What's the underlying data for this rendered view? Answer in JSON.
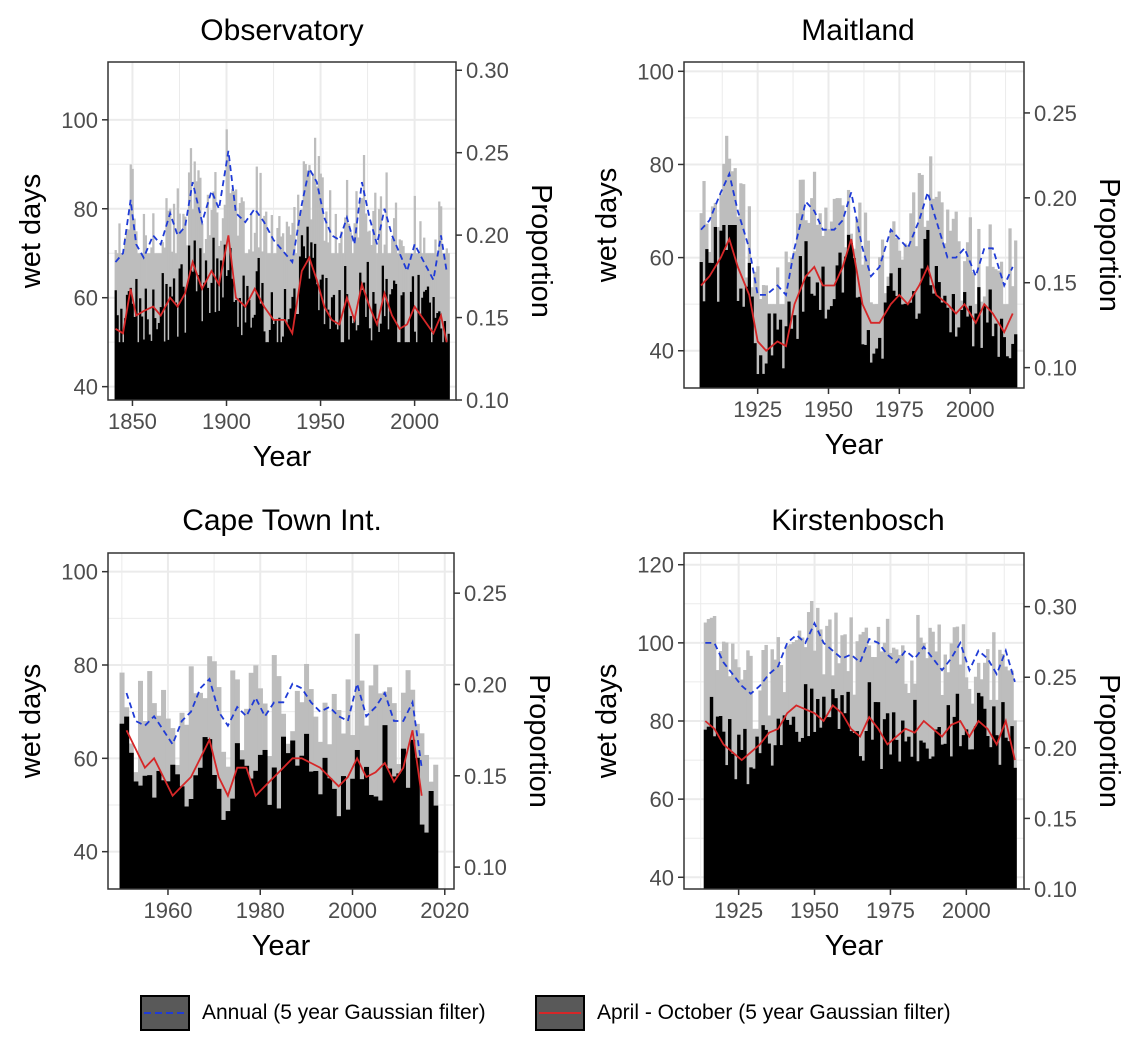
{
  "chart_data": [
    {
      "type": "bar",
      "title": "Observatory",
      "xlabel": "Year",
      "ylabel": "wet days",
      "y2label": "Proportion",
      "xlim": [
        1837,
        2022
      ],
      "ylim": [
        37,
        113
      ],
      "y2lim": [
        0.1,
        0.305
      ],
      "xticks": [
        1850,
        1900,
        1950,
        2000
      ],
      "yticks": [
        40,
        60,
        80,
        100
      ],
      "y2ticks": [
        "0.10",
        "0.15",
        "0.20",
        "0.25",
        "0.30"
      ],
      "x_start": 1841,
      "x_end": 2018,
      "annual_wet_days_range": [
        70,
        106
      ],
      "aprilOct_wet_days_range": [
        50,
        84
      ],
      "annual_filter": [
        [
          1841,
          68
        ],
        [
          1845,
          70
        ],
        [
          1849,
          82
        ],
        [
          1852,
          72
        ],
        [
          1856,
          69
        ],
        [
          1861,
          74
        ],
        [
          1865,
          72
        ],
        [
          1870,
          79
        ],
        [
          1874,
          74
        ],
        [
          1878,
          76
        ],
        [
          1882,
          86
        ],
        [
          1887,
          77
        ],
        [
          1892,
          84
        ],
        [
          1896,
          80
        ],
        [
          1901,
          93
        ],
        [
          1905,
          79
        ],
        [
          1910,
          77
        ],
        [
          1915,
          80
        ],
        [
          1920,
          77
        ],
        [
          1925,
          73
        ],
        [
          1931,
          70
        ],
        [
          1935,
          68
        ],
        [
          1940,
          81
        ],
        [
          1944,
          89
        ],
        [
          1948,
          86
        ],
        [
          1952,
          78
        ],
        [
          1956,
          74
        ],
        [
          1960,
          73
        ],
        [
          1964,
          78
        ],
        [
          1968,
          72
        ],
        [
          1972,
          86
        ],
        [
          1976,
          78
        ],
        [
          1980,
          72
        ],
        [
          1984,
          80
        ],
        [
          1988,
          74
        ],
        [
          1992,
          70
        ],
        [
          1996,
          66
        ],
        [
          2000,
          72
        ],
        [
          2005,
          68
        ],
        [
          2010,
          64
        ],
        [
          2014,
          74
        ],
        [
          2017,
          66
        ]
      ],
      "aprilOct_filter": [
        [
          1841,
          53
        ],
        [
          1845,
          52
        ],
        [
          1849,
          62
        ],
        [
          1852,
          56
        ],
        [
          1856,
          57
        ],
        [
          1861,
          58
        ],
        [
          1865,
          56
        ],
        [
          1870,
          60
        ],
        [
          1874,
          58
        ],
        [
          1878,
          61
        ],
        [
          1882,
          68
        ],
        [
          1887,
          62
        ],
        [
          1892,
          66
        ],
        [
          1896,
          63
        ],
        [
          1901,
          74
        ],
        [
          1905,
          60
        ],
        [
          1910,
          58
        ],
        [
          1915,
          62
        ],
        [
          1920,
          58
        ],
        [
          1925,
          55
        ],
        [
          1931,
          55
        ],
        [
          1935,
          52
        ],
        [
          1940,
          66
        ],
        [
          1944,
          69
        ],
        [
          1948,
          64
        ],
        [
          1952,
          58
        ],
        [
          1956,
          55
        ],
        [
          1960,
          54
        ],
        [
          1964,
          60
        ],
        [
          1968,
          55
        ],
        [
          1972,
          63
        ],
        [
          1976,
          58
        ],
        [
          1980,
          54
        ],
        [
          1984,
          61
        ],
        [
          1988,
          56
        ],
        [
          1992,
          53
        ],
        [
          1996,
          54
        ],
        [
          2000,
          58
        ],
        [
          2005,
          55
        ],
        [
          2010,
          52
        ],
        [
          2014,
          56
        ],
        [
          2017,
          50
        ]
      ]
    },
    {
      "type": "bar",
      "title": "Maitland",
      "xlabel": "Year",
      "ylabel": "wet days",
      "y2label": "Proportion",
      "xlim": [
        1899,
        2019
      ],
      "ylim": [
        32,
        102
      ],
      "y2lim": [
        0.088,
        0.28
      ],
      "xticks": [
        1925,
        1950,
        1975,
        2000
      ],
      "yticks": [
        40,
        60,
        80,
        100
      ],
      "y2ticks": [
        "0.10",
        "0.15",
        "0.20",
        "0.25"
      ],
      "x_start": 1905,
      "x_end": 2016,
      "annual_wet_days_range": [
        50,
        87
      ],
      "aprilOct_wet_days_range": [
        35,
        67
      ],
      "annual_filter": [
        [
          1905,
          66
        ],
        [
          1908,
          68
        ],
        [
          1912,
          74
        ],
        [
          1915,
          78
        ],
        [
          1918,
          70
        ],
        [
          1922,
          62
        ],
        [
          1925,
          52
        ],
        [
          1928,
          52
        ],
        [
          1932,
          54
        ],
        [
          1935,
          52
        ],
        [
          1938,
          62
        ],
        [
          1942,
          72
        ],
        [
          1945,
          70
        ],
        [
          1948,
          66
        ],
        [
          1952,
          66
        ],
        [
          1955,
          68
        ],
        [
          1958,
          74
        ],
        [
          1962,
          62
        ],
        [
          1965,
          56
        ],
        [
          1968,
          58
        ],
        [
          1972,
          66
        ],
        [
          1975,
          64
        ],
        [
          1978,
          62
        ],
        [
          1982,
          68
        ],
        [
          1985,
          74
        ],
        [
          1988,
          68
        ],
        [
          1992,
          60
        ],
        [
          1995,
          60
        ],
        [
          1998,
          62
        ],
        [
          2002,
          56
        ],
        [
          2005,
          62
        ],
        [
          2008,
          62
        ],
        [
          2012,
          54
        ],
        [
          2015,
          58
        ]
      ],
      "aprilOct_filter": [
        [
          1905,
          54
        ],
        [
          1908,
          56
        ],
        [
          1912,
          60
        ],
        [
          1915,
          64
        ],
        [
          1918,
          58
        ],
        [
          1922,
          52
        ],
        [
          1925,
          42
        ],
        [
          1928,
          40
        ],
        [
          1932,
          42
        ],
        [
          1935,
          41
        ],
        [
          1938,
          50
        ],
        [
          1942,
          56
        ],
        [
          1945,
          58
        ],
        [
          1948,
          54
        ],
        [
          1952,
          54
        ],
        [
          1955,
          58
        ],
        [
          1958,
          64
        ],
        [
          1962,
          50
        ],
        [
          1965,
          46
        ],
        [
          1968,
          46
        ],
        [
          1972,
          50
        ],
        [
          1975,
          52
        ],
        [
          1978,
          50
        ],
        [
          1982,
          54
        ],
        [
          1985,
          58
        ],
        [
          1988,
          52
        ],
        [
          1992,
          50
        ],
        [
          1995,
          48
        ],
        [
          1998,
          50
        ],
        [
          2002,
          46
        ],
        [
          2005,
          50
        ],
        [
          2008,
          48
        ],
        [
          2012,
          44
        ],
        [
          2015,
          48
        ]
      ]
    },
    {
      "type": "bar",
      "title": "Cape Town Int.",
      "xlabel": "Year",
      "ylabel": "wet days",
      "y2label": "Proportion",
      "xlim": [
        1947,
        2022
      ],
      "ylim": [
        32,
        104
      ],
      "y2lim": [
        0.088,
        0.272
      ],
      "xticks": [
        1960,
        1980,
        2000,
        2020
      ],
      "yticks": [
        40,
        60,
        80,
        100
      ],
      "y2ticks": [
        "0.10",
        "0.15",
        "0.20",
        "0.25"
      ],
      "x_start": 1950,
      "x_end": 2018,
      "annual_wet_days_range": [
        55,
        88
      ],
      "aprilOct_wet_days_range": [
        42,
        76
      ],
      "annual_filter": [
        [
          1951,
          74
        ],
        [
          1953,
          68
        ],
        [
          1955,
          67
        ],
        [
          1957,
          69
        ],
        [
          1959,
          66
        ],
        [
          1961,
          63
        ],
        [
          1963,
          68
        ],
        [
          1965,
          70
        ],
        [
          1967,
          75
        ],
        [
          1969,
          77
        ],
        [
          1971,
          70
        ],
        [
          1973,
          67
        ],
        [
          1975,
          71
        ],
        [
          1977,
          69
        ],
        [
          1979,
          73
        ],
        [
          1981,
          69
        ],
        [
          1983,
          72
        ],
        [
          1985,
          72
        ],
        [
          1987,
          76
        ],
        [
          1989,
          75
        ],
        [
          1991,
          72
        ],
        [
          1993,
          70
        ],
        [
          1995,
          71
        ],
        [
          1997,
          69
        ],
        [
          1999,
          68
        ],
        [
          2001,
          76
        ],
        [
          2003,
          69
        ],
        [
          2005,
          71
        ],
        [
          2007,
          74
        ],
        [
          2009,
          68
        ],
        [
          2011,
          68
        ],
        [
          2013,
          72
        ],
        [
          2015,
          58
        ]
      ],
      "aprilOct_filter": [
        [
          1951,
          66
        ],
        [
          1953,
          62
        ],
        [
          1955,
          58
        ],
        [
          1957,
          60
        ],
        [
          1959,
          56
        ],
        [
          1961,
          52
        ],
        [
          1963,
          54
        ],
        [
          1965,
          56
        ],
        [
          1967,
          60
        ],
        [
          1969,
          64
        ],
        [
          1971,
          56
        ],
        [
          1973,
          52
        ],
        [
          1975,
          58
        ],
        [
          1977,
          58
        ],
        [
          1979,
          52
        ],
        [
          1981,
          54
        ],
        [
          1983,
          56
        ],
        [
          1985,
          58
        ],
        [
          1987,
          60
        ],
        [
          1989,
          60
        ],
        [
          1991,
          59
        ],
        [
          1993,
          58
        ],
        [
          1995,
          56
        ],
        [
          1997,
          54
        ],
        [
          1999,
          56
        ],
        [
          2001,
          60
        ],
        [
          2003,
          56
        ],
        [
          2005,
          57
        ],
        [
          2007,
          59
        ],
        [
          2009,
          55
        ],
        [
          2011,
          58
        ],
        [
          2013,
          66
        ],
        [
          2015,
          52
        ]
      ]
    },
    {
      "type": "bar",
      "title": "Kirstenbosch",
      "xlabel": "Year",
      "ylabel": "wet days",
      "y2label": "Proportion",
      "xlim": [
        1907,
        2019
      ],
      "ylim": [
        37,
        123
      ],
      "y2lim": [
        0.1,
        0.338
      ],
      "xticks": [
        1925,
        1950,
        1975,
        2000
      ],
      "yticks": [
        40,
        60,
        80,
        100,
        120
      ],
      "y2ticks": [
        "0.10",
        "0.15",
        "0.20",
        "0.25",
        "0.30"
      ],
      "x_start": 1914,
      "x_end": 2016,
      "annual_wet_days_range": [
        78,
        117
      ],
      "aprilOct_wet_days_range": [
        60,
        91
      ],
      "annual_filter": [
        [
          1914,
          100
        ],
        [
          1917,
          100
        ],
        [
          1920,
          95
        ],
        [
          1923,
          92
        ],
        [
          1926,
          89
        ],
        [
          1929,
          87
        ],
        [
          1932,
          89
        ],
        [
          1935,
          92
        ],
        [
          1938,
          94
        ],
        [
          1941,
          100
        ],
        [
          1944,
          102
        ],
        [
          1947,
          100
        ],
        [
          1950,
          105
        ],
        [
          1953,
          100
        ],
        [
          1956,
          98
        ],
        [
          1959,
          96
        ],
        [
          1962,
          97
        ],
        [
          1965,
          95
        ],
        [
          1968,
          101
        ],
        [
          1971,
          100
        ],
        [
          1974,
          97
        ],
        [
          1977,
          95
        ],
        [
          1980,
          98
        ],
        [
          1983,
          96
        ],
        [
          1986,
          99
        ],
        [
          1989,
          96
        ],
        [
          1992,
          93
        ],
        [
          1995,
          96
        ],
        [
          1998,
          100
        ],
        [
          2001,
          93
        ],
        [
          2004,
          98
        ],
        [
          2007,
          96
        ],
        [
          2010,
          92
        ],
        [
          2013,
          98
        ],
        [
          2016,
          90
        ]
      ],
      "aprilOct_filter": [
        [
          1914,
          80
        ],
        [
          1917,
          78
        ],
        [
          1920,
          74
        ],
        [
          1923,
          72
        ],
        [
          1926,
          70
        ],
        [
          1929,
          72
        ],
        [
          1932,
          74
        ],
        [
          1935,
          77
        ],
        [
          1938,
          78
        ],
        [
          1941,
          82
        ],
        [
          1944,
          84
        ],
        [
          1947,
          83
        ],
        [
          1950,
          82
        ],
        [
          1953,
          80
        ],
        [
          1956,
          84
        ],
        [
          1959,
          82
        ],
        [
          1962,
          78
        ],
        [
          1965,
          76
        ],
        [
          1968,
          81
        ],
        [
          1971,
          78
        ],
        [
          1974,
          74
        ],
        [
          1977,
          76
        ],
        [
          1980,
          78
        ],
        [
          1983,
          77
        ],
        [
          1986,
          80
        ],
        [
          1989,
          78
        ],
        [
          1992,
          76
        ],
        [
          1995,
          79
        ],
        [
          1998,
          80
        ],
        [
          2001,
          76
        ],
        [
          2004,
          80
        ],
        [
          2007,
          78
        ],
        [
          2010,
          74
        ],
        [
          2013,
          80
        ],
        [
          2016,
          70
        ]
      ]
    }
  ],
  "legend": {
    "items": [
      {
        "label": "Annual (5 year Gaussian filter)",
        "line_color": "#1f3bd6",
        "line_style": "dashed"
      },
      {
        "label": "April - October (5 year Gaussian filter)",
        "line_color": "#d62728",
        "line_style": "solid"
      }
    ]
  },
  "colors": {
    "annual_bars": "#bdbdbd",
    "aprilOct_bars": "#000000",
    "annual_line": "#1f3bd6",
    "aprilOct_line": "#d62728",
    "grid": "#ebebeb",
    "legend_key_fill": "#595959"
  }
}
